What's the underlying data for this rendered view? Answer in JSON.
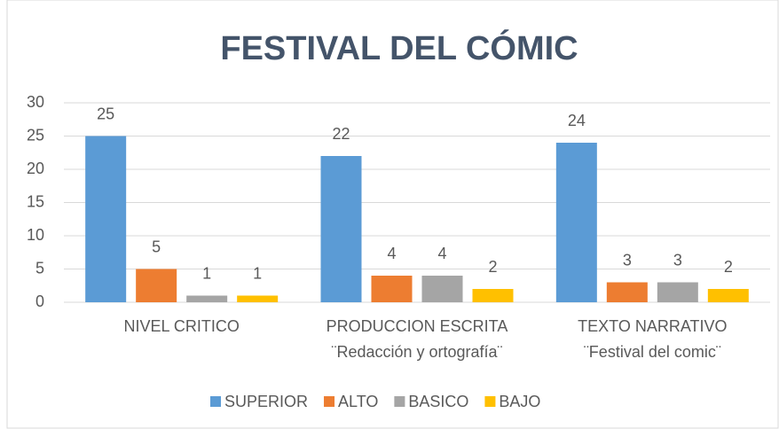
{
  "chart_data": {
    "type": "bar",
    "title": "FESTIVAL DEL CÓMIC",
    "categories": [
      [
        "NIVEL CRITICO"
      ],
      [
        "PRODUCCION ESCRITA",
        "¨Redacción y ortografía¨"
      ],
      [
        "TEXTO NARRATIVO",
        "¨Festival del comic¨"
      ]
    ],
    "series": [
      {
        "name": "SUPERIOR",
        "color": "#5b9bd5",
        "values": [
          25,
          22,
          24
        ]
      },
      {
        "name": "ALTO",
        "color": "#ed7d31",
        "values": [
          5,
          4,
          3
        ]
      },
      {
        "name": "BASICO",
        "color": "#a5a5a5",
        "values": [
          1,
          4,
          3
        ]
      },
      {
        "name": "BAJO",
        "color": "#ffc000",
        "values": [
          1,
          2,
          2
        ]
      }
    ],
    "ylim": [
      0,
      30
    ],
    "yticks": [
      0,
      5,
      10,
      15,
      20,
      25,
      30
    ],
    "grid": true,
    "legend": "bottom"
  }
}
